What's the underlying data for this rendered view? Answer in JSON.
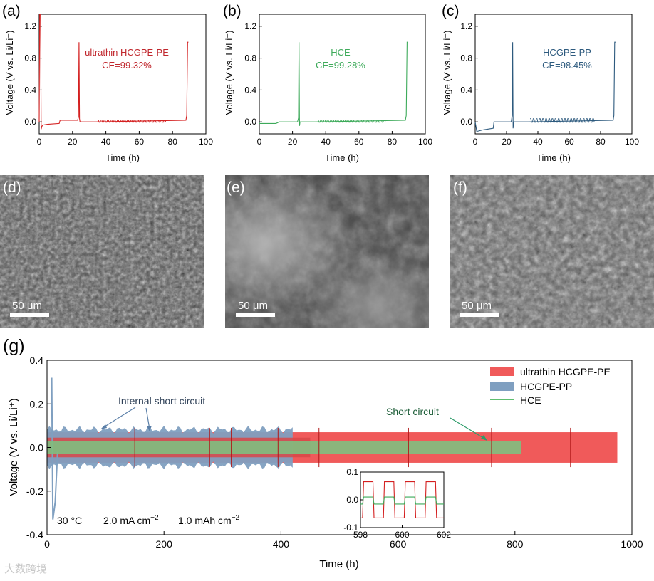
{
  "panels": {
    "a": "(a)",
    "b": "(b)",
    "c": "(c)",
    "d": "(d)",
    "e": "(e)",
    "f": "(f)",
    "g": "(g)"
  },
  "colors": {
    "pe": "#d42020",
    "hce": "#3daa5a",
    "pp": "#2d5a7e",
    "pe_band": "#f05a5a",
    "pp_band": "#7f9fc0",
    "hce_band": "#7fbf7f"
  },
  "scale_bar": "50 μm",
  "watermark": "大数跨境",
  "chart_data": [
    {
      "id": "a",
      "type": "line",
      "xlabel": "Time (h)",
      "ylabel": "Voltage (V vs. Li/Li⁺)",
      "xlim": [
        0,
        100
      ],
      "ylim": [
        -0.15,
        1.35
      ],
      "xticks": [
        0,
        20,
        40,
        60,
        80,
        100
      ],
      "yticks": [
        0.0,
        0.4,
        0.8,
        1.2
      ],
      "annotation": [
        "ultrathin HCGPE-PE",
        "CE=99.32%"
      ],
      "color": "pe",
      "series": [
        {
          "x": [
            0,
            0.3,
            0.8,
            1.2,
            1.6,
            2,
            5,
            12,
            12.5,
            23,
            23.6,
            23.9,
            24.2,
            24.5,
            30,
            34,
            88,
            88.5,
            89,
            89.5
          ],
          "y": [
            0.0,
            1.35,
            1.35,
            -0.09,
            -0.06,
            -0.04,
            -0.03,
            -0.02,
            0.02,
            0.02,
            0.06,
            1.0,
            0.04,
            0.0,
            0.0,
            0.0,
            0.02,
            0.08,
            1.0,
            1.0
          ]
        }
      ]
    },
    {
      "id": "b",
      "type": "line",
      "xlabel": "Time (h)",
      "ylabel": "Voltage (V vs. Li/Li⁺)",
      "xlim": [
        0,
        100
      ],
      "ylim": [
        -0.15,
        1.35
      ],
      "xticks": [
        0,
        20,
        40,
        60,
        80,
        100
      ],
      "yticks": [
        0.0,
        0.4,
        0.8,
        1.2
      ],
      "annotation": [
        "HCE",
        "CE=99.28%"
      ],
      "color": "hce",
      "series": [
        {
          "x": [
            0,
            10,
            12,
            23,
            23.6,
            23.9,
            24.2,
            24.5,
            30,
            34,
            88,
            88.5,
            89,
            89.5
          ],
          "y": [
            -0.02,
            -0.02,
            0.0,
            0.0,
            0.05,
            1.0,
            -0.05,
            0.0,
            0.0,
            0.0,
            0.02,
            0.08,
            1.0,
            1.0
          ]
        }
      ]
    },
    {
      "id": "c",
      "type": "line",
      "xlabel": "Time (h)",
      "ylabel": "Voltage (V vs. Li/Li⁺)",
      "xlim": [
        0,
        100
      ],
      "ylim": [
        -0.15,
        1.35
      ],
      "xticks": [
        0,
        20,
        40,
        60,
        80,
        100
      ],
      "yticks": [
        0.0,
        0.4,
        0.8,
        1.2
      ],
      "annotation": [
        "HCGPE-PP",
        "CE=98.45%"
      ],
      "color": "pp",
      "series": [
        {
          "x": [
            0,
            1,
            5,
            11.5,
            12,
            23,
            23.6,
            23.9,
            24.2,
            24.5,
            30,
            34,
            88,
            88.5,
            89,
            89.5
          ],
          "y": [
            0,
            -0.12,
            -0.1,
            -0.08,
            0.0,
            0.0,
            0.08,
            1.0,
            -0.08,
            0.0,
            0.0,
            0.0,
            0.02,
            0.08,
            1.0,
            1.0
          ]
        }
      ]
    },
    {
      "id": "g",
      "type": "line",
      "xlabel": "Time (h)",
      "ylabel": "Voltage (V vs. Li/Li⁺)",
      "xlim": [
        0,
        1000
      ],
      "ylim": [
        -0.4,
        0.4
      ],
      "xticks": [
        0,
        200,
        400,
        600,
        800,
        1000
      ],
      "yticks": [
        -0.4,
        -0.2,
        0.0,
        0.2,
        0.4
      ],
      "legend": "top-right",
      "series": [
        {
          "name": "ultrathin HCGPE-PE",
          "color": "pe_band",
          "x_end": 975,
          "amplitude": 0.07
        },
        {
          "name": "HCGPE-PP",
          "color": "pp_band",
          "x_end": 420,
          "amplitude": 0.1
        },
        {
          "name": "HCE",
          "color": "hce_band",
          "x_end": 810,
          "amplitude": 0.03
        }
      ],
      "annotations": [
        "Internal short circuit",
        "Short circuit"
      ],
      "conditions": {
        "temp": "30 °C",
        "current": "2.0 mA cm",
        "capacity": "1.0 mAh cm",
        "exp": "−2"
      },
      "inset": {
        "xlim": [
          598,
          602
        ],
        "ylim": [
          -0.1,
          0.1
        ],
        "xticks": [
          598,
          600,
          602
        ],
        "yticks": [
          -0.1,
          0.0,
          0.1
        ]
      }
    }
  ]
}
